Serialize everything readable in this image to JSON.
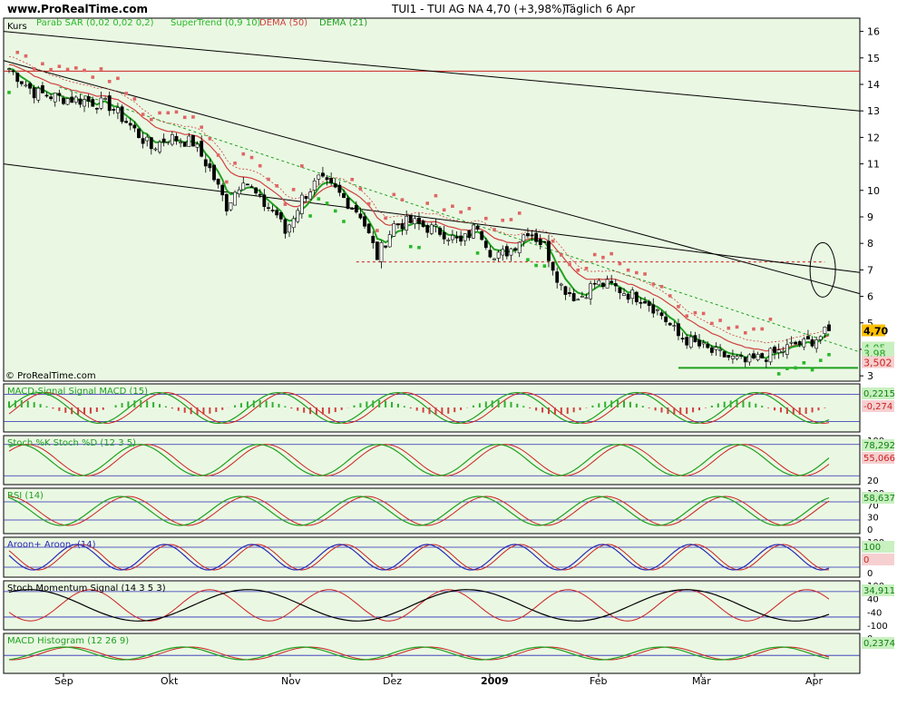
{
  "header": {
    "site": "www.ProRealTime.com",
    "title": "TUI1 - TUI AG NA",
    "quote": "4,70 (+3,98%)",
    "period": "Täglich",
    "date": "6 Apr",
    "credit": "© ProRealTime.com"
  },
  "colors": {
    "panel_bg": "#eaf8e3",
    "up_candle": "#ffffff",
    "down_candle": "#000000",
    "sar": "#e06565",
    "supertrend": "#29b829",
    "tema": "#d04040",
    "dema": "#20a020",
    "price_label": "#ffc000",
    "grid_blue": "#2a2ab5"
  },
  "chart_data": [
    {
      "type": "candlestick",
      "panel": "price",
      "label": "Kurs",
      "legend": [
        "Parab SAR (0,02 0,02 0,2)",
        "SuperTrend (0,9 10)",
        "DEMA (50)",
        "DEMA (21)"
      ],
      "x_labels": [
        "Sep",
        "Okt",
        "Nov",
        "Dez",
        "2009",
        "Feb",
        "Mär",
        "Apr"
      ],
      "y_ticks": [
        3,
        4,
        5,
        6,
        7,
        8,
        9,
        10,
        11,
        12,
        13,
        14,
        15,
        16
      ],
      "ylim": [
        2.8,
        16.5
      ],
      "close_path": [
        [
          0,
          14.6
        ],
        [
          6,
          13.7
        ],
        [
          12,
          13.5
        ],
        [
          18,
          13.4
        ],
        [
          24,
          13.2
        ],
        [
          28,
          12.6
        ],
        [
          34,
          11.6
        ],
        [
          38,
          12.0
        ],
        [
          44,
          11.8
        ],
        [
          48,
          10.8
        ],
        [
          52,
          9.4
        ],
        [
          56,
          10.5
        ],
        [
          60,
          9.6
        ],
        [
          64,
          9.1
        ],
        [
          66,
          8.4
        ],
        [
          70,
          9.7
        ],
        [
          74,
          10.4
        ],
        [
          78,
          10.0
        ],
        [
          84,
          9.1
        ],
        [
          88,
          7.5
        ],
        [
          92,
          8.7
        ],
        [
          96,
          8.8
        ],
        [
          100,
          8.6
        ],
        [
          104,
          8.4
        ],
        [
          108,
          8.0
        ],
        [
          112,
          8.7
        ],
        [
          116,
          7.4
        ],
        [
          120,
          7.8
        ],
        [
          124,
          8.5
        ],
        [
          128,
          7.9
        ],
        [
          132,
          6.4
        ],
        [
          136,
          5.9
        ],
        [
          140,
          6.5
        ],
        [
          144,
          6.4
        ],
        [
          148,
          6.1
        ],
        [
          152,
          5.9
        ],
        [
          156,
          5.3
        ],
        [
          160,
          4.5
        ],
        [
          164,
          4.2
        ],
        [
          168,
          3.9
        ],
        [
          172,
          3.7
        ],
        [
          176,
          3.5
        ],
        [
          180,
          3.7
        ],
        [
          184,
          3.9
        ],
        [
          188,
          4.2
        ],
        [
          190,
          4.2
        ],
        [
          194,
          4.5
        ],
        [
          196,
          4.7
        ]
      ],
      "hlines": [
        {
          "value": 14.5,
          "color": "#cc2020",
          "style": "solid"
        },
        {
          "value": 7.3,
          "color": "#cc2020",
          "style": "dashed"
        },
        {
          "value": 3.3,
          "color": "#20a020",
          "style": "solid"
        }
      ],
      "value_labels": [
        "4,70",
        "4,05",
        "3,98",
        "3,502"
      ]
    },
    {
      "type": "line",
      "panel": "macd_signal",
      "label": "MACD-Signal Signal MACD (15)",
      "value_labels": [
        "0,2215",
        "-0,274"
      ]
    },
    {
      "type": "line",
      "panel": "stochastic",
      "label": "Stoch %K Stoch %D (12 3 5)",
      "y_ticks": [
        "100",
        "80",
        "20"
      ],
      "value_labels": [
        "78,292",
        "55,066"
      ]
    },
    {
      "type": "line",
      "panel": "rsi",
      "label": "RSI (14)",
      "y_ticks": [
        "100",
        "70",
        "30",
        "0"
      ],
      "value_labels": [
        "58,637"
      ]
    },
    {
      "type": "line",
      "panel": "aroon",
      "label": "Aroon+ Aroon- (14)",
      "y_ticks": [
        "100",
        "0"
      ],
      "value_labels": [
        "100",
        "0"
      ]
    },
    {
      "type": "line",
      "panel": "stoch_momentum",
      "label": "Stoch Momentum Signal (14 3 5 3)",
      "y_ticks": [
        "100",
        "40",
        "-40",
        "-100"
      ],
      "value_labels": [
        "34,911"
      ]
    },
    {
      "type": "area",
      "panel": "macd_histogram",
      "label": "MACD Histogram (12 26 9)",
      "y_ticks": [
        "0"
      ],
      "value_labels": [
        "0,2374"
      ]
    }
  ]
}
